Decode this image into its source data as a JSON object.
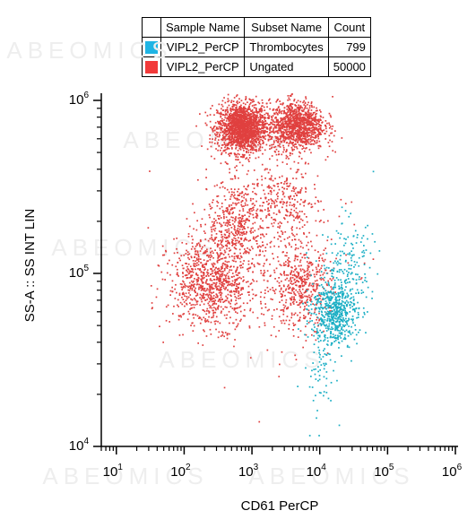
{
  "legend": {
    "headers": [
      "Sample Name",
      "Subset Name",
      "Count"
    ],
    "rows": [
      {
        "sample": "VIPL2_PerCP",
        "subset": "Thrombocytes",
        "count": "799",
        "color": "#1fb4e4"
      },
      {
        "sample": "VIPL2_PerCP",
        "subset": "Ungated",
        "count": "50000",
        "color": "#f23a3a"
      }
    ]
  },
  "watermark": "ABEOMICS",
  "chart_data": {
    "type": "scatter",
    "xlabel": "CD61 PerCP",
    "ylabel": "SS-A :: SS INT LIN",
    "x_scale": "log",
    "y_scale": "log",
    "xlim": [
      6,
      1000000
    ],
    "ylim": [
      10000,
      1100000
    ],
    "x_ticks": [
      {
        "base": "10",
        "exp": "1",
        "value": 10
      },
      {
        "base": "10",
        "exp": "2",
        "value": 100
      },
      {
        "base": "10",
        "exp": "3",
        "value": 1000
      },
      {
        "base": "10",
        "exp": "4",
        "value": 10000
      },
      {
        "base": "10",
        "exp": "5",
        "value": 100000
      },
      {
        "base": "10",
        "exp": "6",
        "value": 1000000
      }
    ],
    "y_ticks": [
      {
        "base": "10",
        "exp": "4",
        "value": 10000
      },
      {
        "base": "10",
        "exp": "5",
        "value": 100000
      },
      {
        "base": "10",
        "exp": "6",
        "value": 1000000
      }
    ],
    "series": [
      {
        "name": "Ungated",
        "color": "#e0403f",
        "clusters": [
          {
            "x": 700,
            "y": 700000,
            "sx": 0.18,
            "sy": 0.07,
            "weight": 0.34
          },
          {
            "x": 4500,
            "y": 720000,
            "sx": 0.2,
            "sy": 0.07,
            "weight": 0.22
          },
          {
            "x": 250,
            "y": 90000,
            "sx": 0.32,
            "sy": 0.13,
            "weight": 0.18
          },
          {
            "x": 5000,
            "y": 85000,
            "sx": 0.22,
            "sy": 0.12,
            "weight": 0.09
          },
          {
            "x": 600,
            "y": 200000,
            "sx": 0.22,
            "sy": 0.12,
            "weight": 0.08
          },
          {
            "x": 3000,
            "y": 250000,
            "sx": 0.25,
            "sy": 0.12,
            "weight": 0.05
          },
          {
            "x": 2000,
            "y": 150000,
            "sx": 0.6,
            "sy": 0.35,
            "weight": 0.04
          }
        ]
      },
      {
        "name": "Thrombocytes",
        "color": "#1aaec4",
        "clusters": [
          {
            "x": 16000,
            "y": 60000,
            "sx": 0.17,
            "sy": 0.1,
            "weight": 0.75
          },
          {
            "x": 25000,
            "y": 120000,
            "sx": 0.2,
            "sy": 0.12,
            "weight": 0.18
          },
          {
            "x": 10000,
            "y": 25000,
            "sx": 0.12,
            "sy": 0.12,
            "weight": 0.07
          }
        ]
      }
    ]
  }
}
